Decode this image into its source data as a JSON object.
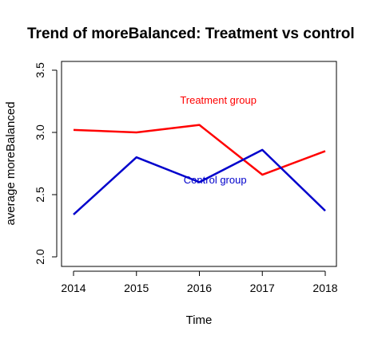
{
  "chart_data": {
    "type": "line",
    "title": "Trend of moreBalanced: Treatment vs control",
    "xlabel": "Time",
    "ylabel": "average moreBalanced",
    "x": [
      2014,
      2015,
      2016,
      2017,
      2018
    ],
    "xlim": [
      2014,
      2018
    ],
    "ylim": [
      2.0,
      3.5
    ],
    "x_ticks": [
      "2014",
      "2015",
      "2016",
      "2017",
      "2018"
    ],
    "y_ticks": [
      "2.0",
      "2.5",
      "3.0",
      "3.5"
    ],
    "grid": false,
    "series": [
      {
        "name": "Treatment group",
        "color": "#ff0000",
        "values": [
          3.02,
          3.0,
          3.06,
          2.66,
          2.85
        ],
        "label_at": {
          "x": 2016.3,
          "y": 3.23
        }
      },
      {
        "name": "Control group",
        "color": "#0000cc",
        "values": [
          2.34,
          2.8,
          2.6,
          2.86,
          2.37
        ],
        "label_at": {
          "x": 2016.25,
          "y": 2.59
        }
      }
    ]
  }
}
